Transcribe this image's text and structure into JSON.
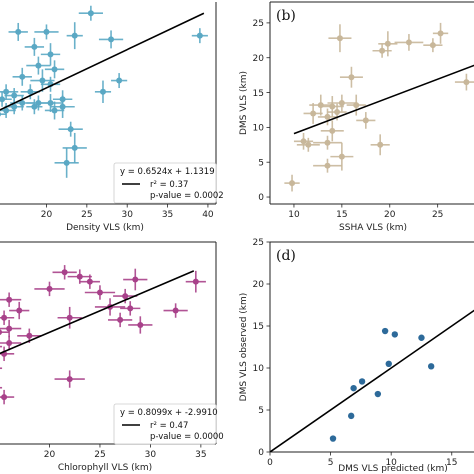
{
  "chart_data": [
    {
      "id": "a",
      "type": "scatter",
      "panel_label": "",
      "xlabel": "Density VLS (km)",
      "ylabel": "",
      "xlim": [
        13.5,
        41
      ],
      "ylim": [
        -1,
        26
      ],
      "xticks": [
        20,
        25,
        30,
        35,
        40
      ],
      "yticks": [],
      "color": "#5aa8c4",
      "points": [
        {
          "x": 25.5,
          "y": 24.5,
          "ex": 1.5,
          "ey": 1.0
        },
        {
          "x": 16.5,
          "y": 22.0,
          "ex": 1.2,
          "ey": 1.2
        },
        {
          "x": 20.0,
          "y": 22.0,
          "ex": 1.5,
          "ey": 1.0
        },
        {
          "x": 23.5,
          "y": 21.5,
          "ex": 1.0,
          "ey": 1.8
        },
        {
          "x": 28.0,
          "y": 21.0,
          "ex": 1.5,
          "ey": 1.2
        },
        {
          "x": 39.0,
          "y": 21.5,
          "ex": 1.0,
          "ey": 1.0
        },
        {
          "x": 18.5,
          "y": 20.0,
          "ex": 1.2,
          "ey": 1.2
        },
        {
          "x": 20.5,
          "y": 19.0,
          "ex": 1.2,
          "ey": 1.5
        },
        {
          "x": 19.0,
          "y": 17.5,
          "ex": 1.5,
          "ey": 1.2
        },
        {
          "x": 21.0,
          "y": 17.0,
          "ex": 1.2,
          "ey": 1.2
        },
        {
          "x": 17.0,
          "y": 16.0,
          "ex": 1.2,
          "ey": 1.2
        },
        {
          "x": 19.5,
          "y": 15.5,
          "ex": 1.5,
          "ey": 1.5
        },
        {
          "x": 20.5,
          "y": 15.0,
          "ex": 1.2,
          "ey": 1.0
        },
        {
          "x": 29.0,
          "y": 15.5,
          "ex": 1.0,
          "ey": 1.0
        },
        {
          "x": 15.0,
          "y": 14.0,
          "ex": 1.5,
          "ey": 1.0
        },
        {
          "x": 18.0,
          "y": 14.0,
          "ex": 1.2,
          "ey": 1.0
        },
        {
          "x": 16.0,
          "y": 13.5,
          "ex": 1.2,
          "ey": 1.0
        },
        {
          "x": 22.0,
          "y": 13.0,
          "ex": 1.2,
          "ey": 1.2
        },
        {
          "x": 27.0,
          "y": 14.0,
          "ex": 1.0,
          "ey": 1.5
        },
        {
          "x": 14.5,
          "y": 13.0,
          "ex": 1.2,
          "ey": 1.0
        },
        {
          "x": 17.0,
          "y": 12.5,
          "ex": 1.5,
          "ey": 1.0
        },
        {
          "x": 19.0,
          "y": 12.5,
          "ex": 1.5,
          "ey": 1.0
        },
        {
          "x": 20.5,
          "y": 12.5,
          "ex": 1.5,
          "ey": 1.2
        },
        {
          "x": 22.0,
          "y": 12.0,
          "ex": 1.5,
          "ey": 1.5
        },
        {
          "x": 16.0,
          "y": 12.0,
          "ex": 1.2,
          "ey": 1.0
        },
        {
          "x": 18.5,
          "y": 12.0,
          "ex": 1.0,
          "ey": 1.0
        },
        {
          "x": 15.0,
          "y": 11.5,
          "ex": 1.2,
          "ey": 1.0
        },
        {
          "x": 21.0,
          "y": 11.5,
          "ex": 1.2,
          "ey": 1.2
        },
        {
          "x": 14.0,
          "y": 11.0,
          "ex": 1.0,
          "ey": 1.0
        },
        {
          "x": 23.0,
          "y": 9.0,
          "ex": 1.5,
          "ey": 1.0
        },
        {
          "x": 23.5,
          "y": 6.5,
          "ex": 1.5,
          "ey": 2.0
        },
        {
          "x": 22.5,
          "y": 4.5,
          "ex": 1.5,
          "ey": 2.0
        },
        {
          "x": 13.5,
          "y": 2.0,
          "ex": 0.5,
          "ey": 1.0
        }
      ],
      "fit": {
        "x1": 13.5,
        "y1": 11.2,
        "x2": 39.5,
        "y2": 24.5
      },
      "legend": {
        "equation": "y = 0.6524x + 1.1319",
        "r2": "r² = 0.37",
        "pvalue": "p-value = 0.0002"
      }
    },
    {
      "id": "b",
      "type": "scatter",
      "panel_label": "(b)",
      "xlabel": "SSHA VLS (km)",
      "ylabel": "DMS VLS (km)",
      "xlim": [
        7.5,
        29
      ],
      "ylim": [
        -1,
        28
      ],
      "xticks": [
        10,
        15,
        20,
        25
      ],
      "yticks": [
        0,
        5,
        10,
        15,
        20,
        25
      ],
      "color": "#c8b79a",
      "points": [
        {
          "x": 14.8,
          "y": 22.8,
          "ex": 1.2,
          "ey": 2.0
        },
        {
          "x": 25.3,
          "y": 23.5,
          "ex": 0.8,
          "ey": 1.5
        },
        {
          "x": 19.8,
          "y": 22.0,
          "ex": 1.0,
          "ey": 1.8
        },
        {
          "x": 22.0,
          "y": 22.2,
          "ex": 1.5,
          "ey": 1.2
        },
        {
          "x": 19.2,
          "y": 21.0,
          "ex": 1.0,
          "ey": 1.0
        },
        {
          "x": 24.5,
          "y": 21.8,
          "ex": 1.0,
          "ey": 1.0
        },
        {
          "x": 28.0,
          "y": 16.5,
          "ex": 1.2,
          "ey": 1.2
        },
        {
          "x": 16.0,
          "y": 17.2,
          "ex": 1.2,
          "ey": 1.5
        },
        {
          "x": 12.8,
          "y": 13.2,
          "ex": 1.2,
          "ey": 1.5
        },
        {
          "x": 14.0,
          "y": 13.0,
          "ex": 1.2,
          "ey": 1.5
        },
        {
          "x": 15.0,
          "y": 13.5,
          "ex": 1.5,
          "ey": 1.2
        },
        {
          "x": 16.5,
          "y": 13.2,
          "ex": 1.0,
          "ey": 1.5
        },
        {
          "x": 12.0,
          "y": 12.0,
          "ex": 1.0,
          "ey": 1.5
        },
        {
          "x": 13.5,
          "y": 11.5,
          "ex": 1.0,
          "ey": 1.2
        },
        {
          "x": 14.5,
          "y": 12.2,
          "ex": 1.0,
          "ey": 1.2
        },
        {
          "x": 17.5,
          "y": 11.0,
          "ex": 1.0,
          "ey": 1.2
        },
        {
          "x": 14.0,
          "y": 9.5,
          "ex": 1.2,
          "ey": 1.5
        },
        {
          "x": 11.0,
          "y": 8.0,
          "ex": 1.0,
          "ey": 1.2
        },
        {
          "x": 11.5,
          "y": 7.5,
          "ex": 1.2,
          "ey": 1.0
        },
        {
          "x": 13.5,
          "y": 7.8,
          "ex": 1.5,
          "ey": 1.0
        },
        {
          "x": 19.0,
          "y": 7.5,
          "ex": 1.0,
          "ey": 1.5
        },
        {
          "x": 15.0,
          "y": 5.8,
          "ex": 1.2,
          "ey": 2.0
        },
        {
          "x": 13.5,
          "y": 4.5,
          "ex": 1.5,
          "ey": 1.0
        },
        {
          "x": 9.8,
          "y": 2.0,
          "ex": 0.8,
          "ey": 1.2
        }
      ],
      "fit": {
        "x1": 10.0,
        "y1": 9.1,
        "x2": 29.0,
        "y2": 19.0
      },
      "legend": null
    },
    {
      "id": "c",
      "type": "scatter",
      "panel_label": "",
      "xlabel": "Chlorophyll VLS (km)",
      "ylabel": "",
      "xlim": [
        14.5,
        36.5
      ],
      "ylim": [
        2,
        30
      ],
      "xticks": [
        20,
        25,
        30,
        35
      ],
      "yticks": [],
      "color": "#a8418a",
      "points": [
        {
          "x": 21.5,
          "y": 25.8,
          "ex": 1.2,
          "ey": 1.0
        },
        {
          "x": 23.0,
          "y": 25.2,
          "ex": 1.2,
          "ey": 1.0
        },
        {
          "x": 24.0,
          "y": 24.5,
          "ex": 1.0,
          "ey": 1.0
        },
        {
          "x": 28.5,
          "y": 24.8,
          "ex": 1.2,
          "ey": 1.5
        },
        {
          "x": 34.5,
          "y": 24.5,
          "ex": 1.0,
          "ey": 1.5
        },
        {
          "x": 20.0,
          "y": 23.5,
          "ex": 1.5,
          "ey": 1.0
        },
        {
          "x": 25.0,
          "y": 23.0,
          "ex": 1.5,
          "ey": 1.0
        },
        {
          "x": 27.5,
          "y": 22.5,
          "ex": 1.2,
          "ey": 1.0
        },
        {
          "x": 16.0,
          "y": 22.0,
          "ex": 1.2,
          "ey": 1.0
        },
        {
          "x": 17.0,
          "y": 20.5,
          "ex": 1.0,
          "ey": 1.2
        },
        {
          "x": 26.0,
          "y": 21.0,
          "ex": 1.5,
          "ey": 1.2
        },
        {
          "x": 28.0,
          "y": 20.8,
          "ex": 1.0,
          "ey": 1.0
        },
        {
          "x": 32.5,
          "y": 20.5,
          "ex": 1.2,
          "ey": 1.0
        },
        {
          "x": 15.5,
          "y": 19.5,
          "ex": 1.0,
          "ey": 1.0
        },
        {
          "x": 22.0,
          "y": 19.5,
          "ex": 1.2,
          "ey": 1.5
        },
        {
          "x": 27.0,
          "y": 19.2,
          "ex": 1.2,
          "ey": 1.0
        },
        {
          "x": 16.0,
          "y": 18.0,
          "ex": 1.2,
          "ey": 1.2
        },
        {
          "x": 29.0,
          "y": 18.5,
          "ex": 1.2,
          "ey": 1.2
        },
        {
          "x": 15.0,
          "y": 17.5,
          "ex": 1.0,
          "ey": 1.0
        },
        {
          "x": 18.0,
          "y": 17.0,
          "ex": 1.2,
          "ey": 1.0
        },
        {
          "x": 16.0,
          "y": 16.0,
          "ex": 1.2,
          "ey": 1.0
        },
        {
          "x": 14.8,
          "y": 15.5,
          "ex": 0.5,
          "ey": 1.0
        },
        {
          "x": 15.5,
          "y": 14.5,
          "ex": 1.0,
          "ey": 1.0
        },
        {
          "x": 14.8,
          "y": 12.5,
          "ex": 0.5,
          "ey": 1.5
        },
        {
          "x": 22.0,
          "y": 11.0,
          "ex": 1.5,
          "ey": 1.2
        },
        {
          "x": 14.8,
          "y": 9.8,
          "ex": 0.5,
          "ey": 1.0
        },
        {
          "x": 15.5,
          "y": 8.5,
          "ex": 1.0,
          "ey": 1.0
        }
      ],
      "fit": {
        "x1": 14.5,
        "y1": 14.2,
        "x2": 34.3,
        "y2": 26.0
      },
      "legend": {
        "equation": "y = 0.8099x + -2.9910",
        "r2": "r² = 0.47",
        "pvalue": "p-value = 0.0000"
      }
    },
    {
      "id": "d",
      "type": "scatter",
      "panel_label": "(d)",
      "xlabel": "DMS VLS predicted (km)",
      "ylabel": "DMS VLS observed (km)",
      "xlim": [
        0,
        17
      ],
      "ylim": [
        0,
        25
      ],
      "xticks": [
        0,
        5,
        10,
        15
      ],
      "yticks": [
        0,
        5,
        10,
        15,
        20,
        25
      ],
      "color": "#2d6a9a",
      "points": [
        {
          "x": 5.2,
          "y": 1.6
        },
        {
          "x": 6.7,
          "y": 4.3
        },
        {
          "x": 6.9,
          "y": 7.6
        },
        {
          "x": 7.6,
          "y": 8.4
        },
        {
          "x": 8.9,
          "y": 6.9
        },
        {
          "x": 9.5,
          "y": 14.4
        },
        {
          "x": 9.8,
          "y": 10.5
        },
        {
          "x": 10.3,
          "y": 14.0
        },
        {
          "x": 12.5,
          "y": 13.6
        },
        {
          "x": 13.3,
          "y": 10.2
        }
      ],
      "fit": {
        "x1": 0,
        "y1": 0,
        "x2": 17,
        "y2": 17
      },
      "legend": null
    }
  ]
}
